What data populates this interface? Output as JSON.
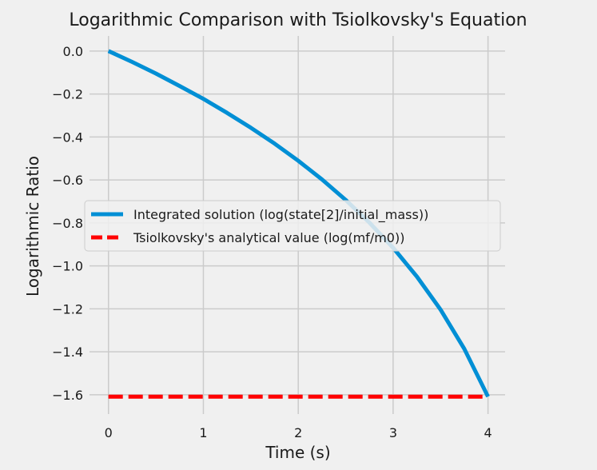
{
  "chart_data": {
    "type": "line",
    "title": "Logarithmic Comparison with Tsiolkovsky's Equation",
    "xlabel": "Time (s)",
    "ylabel": "Logarithmic Ratio",
    "xlim": [
      -0.2,
      4.18
    ],
    "ylim": [
      -1.69,
      0.07
    ],
    "x_ticks": [
      0,
      1,
      2,
      3,
      4
    ],
    "x_tick_labels": [
      "0",
      "1",
      "2",
      "3",
      "4"
    ],
    "y_ticks": [
      0.0,
      -0.2,
      -0.4,
      -0.6,
      -0.8,
      -1.0,
      -1.2,
      -1.4,
      -1.6
    ],
    "y_tick_labels": [
      "0.0",
      "−0.2",
      "−0.4",
      "−0.6",
      "−0.8",
      "−1.0",
      "−1.2",
      "−1.4",
      "−1.6"
    ],
    "grid": true,
    "legend_position": "center-left",
    "series": [
      {
        "name": "Integrated solution (log(state[2]/initial_mass))",
        "style": "solid",
        "color": "#008fd5",
        "x": [
          0,
          0.25,
          0.5,
          0.75,
          1.0,
          1.25,
          1.5,
          1.75,
          2.0,
          2.25,
          2.5,
          2.75,
          3.0,
          3.25,
          3.5,
          3.75,
          4.0
        ],
        "y": [
          0,
          -0.051,
          -0.105,
          -0.163,
          -0.223,
          -0.288,
          -0.357,
          -0.431,
          -0.511,
          -0.598,
          -0.693,
          -0.799,
          -0.916,
          -1.05,
          -1.204,
          -1.386,
          -1.609
        ]
      },
      {
        "name": "Tsiolkovsky's analytical value (log(mf/m0))",
        "style": "dashed",
        "color": "#ff0000",
        "x": [
          0,
          4.0
        ],
        "y": [
          -1.609,
          -1.609
        ]
      }
    ]
  }
}
